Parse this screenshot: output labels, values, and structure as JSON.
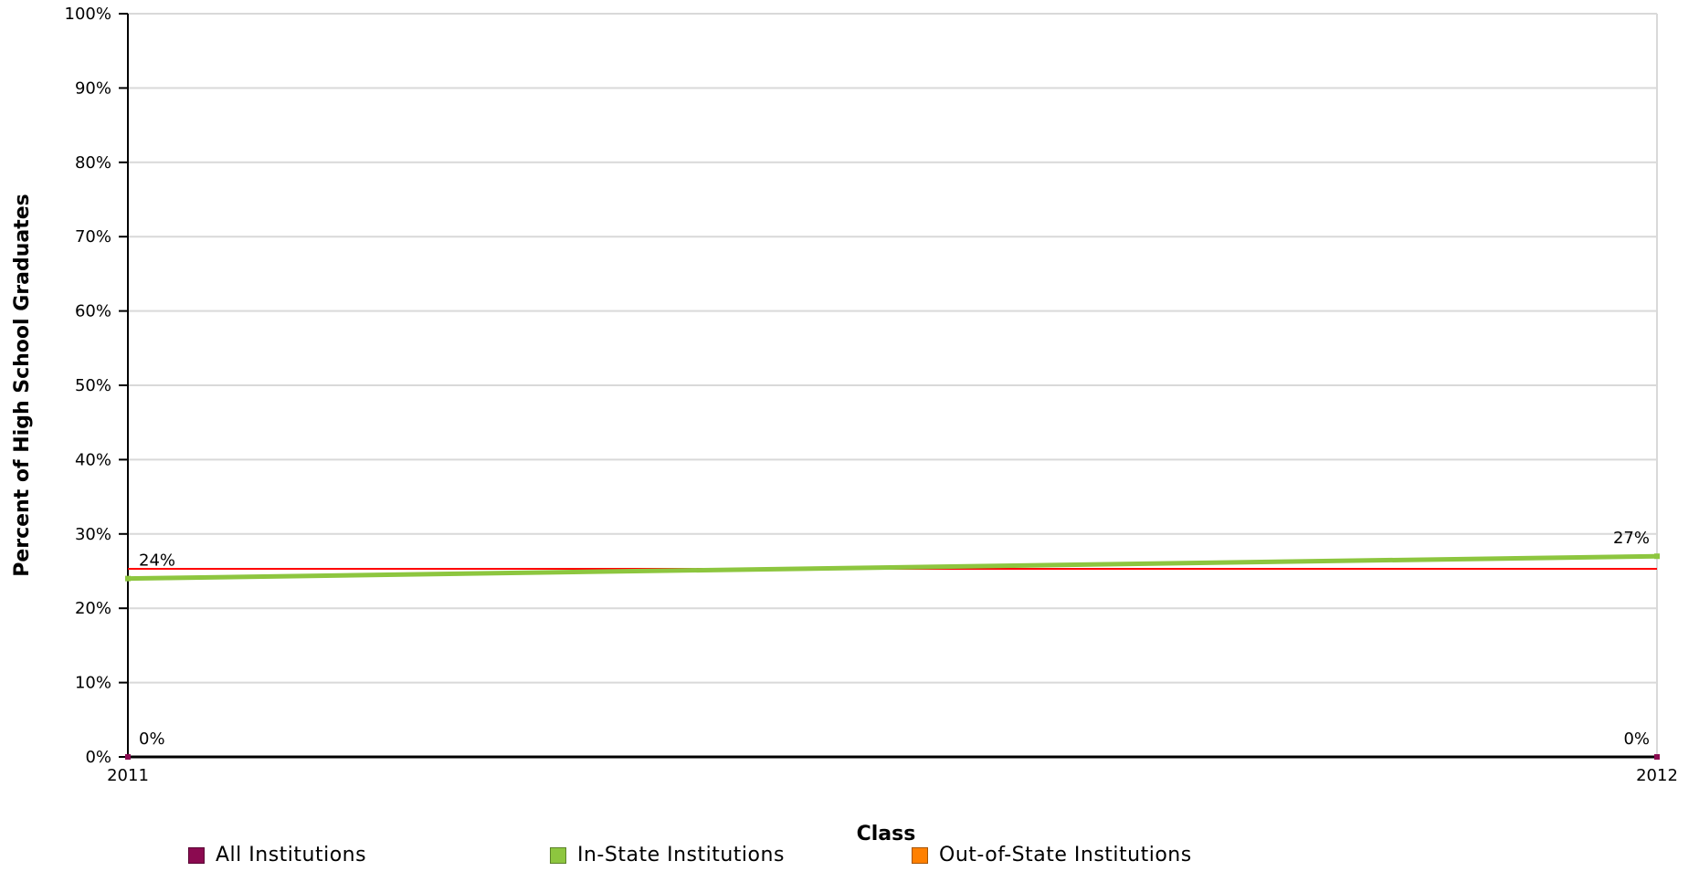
{
  "chart_data": {
    "type": "line",
    "xlabel": "Class",
    "ylabel": "Percent of High School Graduates",
    "x": [
      "2011",
      "2012"
    ],
    "ylim": [
      0,
      100
    ],
    "yticks": [
      "0%",
      "10%",
      "20%",
      "30%",
      "40%",
      "50%",
      "60%",
      "70%",
      "80%",
      "90%",
      "100%"
    ],
    "grid": true,
    "legend_position": "bottom",
    "series": [
      {
        "name": "All Institutions",
        "color": "#8b0a50",
        "values": [
          0,
          0
        ],
        "labels": [
          "0%",
          "0%"
        ]
      },
      {
        "name": "In-State Institutions",
        "color": "#8dc63f",
        "values": [
          24,
          27
        ],
        "labels": [
          "24%",
          "27%"
        ]
      },
      {
        "name": "Out-of-State Institutions",
        "color": "#ff8000",
        "values": [
          0,
          0
        ],
        "labels": [
          "",
          ""
        ]
      }
    ],
    "reference_line": {
      "value": 25.3,
      "color": "#ff0000"
    }
  },
  "legend": [
    {
      "label": "All Institutions",
      "color": "#8b0a50"
    },
    {
      "label": "In-State Institutions",
      "color": "#8dc63f"
    },
    {
      "label": "Out-of-State Institutions",
      "color": "#ff8000"
    }
  ]
}
